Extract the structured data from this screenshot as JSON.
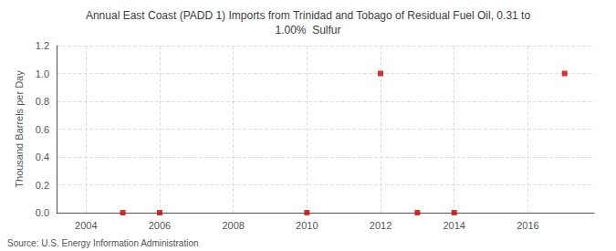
{
  "chart_data": {
    "type": "scatter",
    "title": "Annual East Coast (PADD 1) Imports from Trinidad and Tobago of Residual Fuel Oil, 0.31 to\n1.00%  Sulfur",
    "ylabel": "Thousand Barrels per Day",
    "annotation": "Source: U.S. Energy Information Administration",
    "x": [
      2005,
      2006,
      2010,
      2012,
      2013,
      2014,
      2017
    ],
    "values": [
      0.0,
      0.0,
      0.0,
      1.0,
      0.0,
      0.0,
      1.0
    ],
    "color": "#cc0000",
    "marker": "square",
    "xlim": [
      2003.2,
      2017.8
    ],
    "xticks": [
      2004,
      2006,
      2008,
      2010,
      2012,
      2014,
      2016
    ],
    "ylim": [
      0.0,
      1.2
    ],
    "yticks": [
      {
        "value": 0,
        "label": "0.0"
      },
      0.2,
      0.4,
      0.6,
      0.8,
      {
        "value": 1,
        "label": "1.0"
      },
      1.2
    ],
    "grid": true
  }
}
